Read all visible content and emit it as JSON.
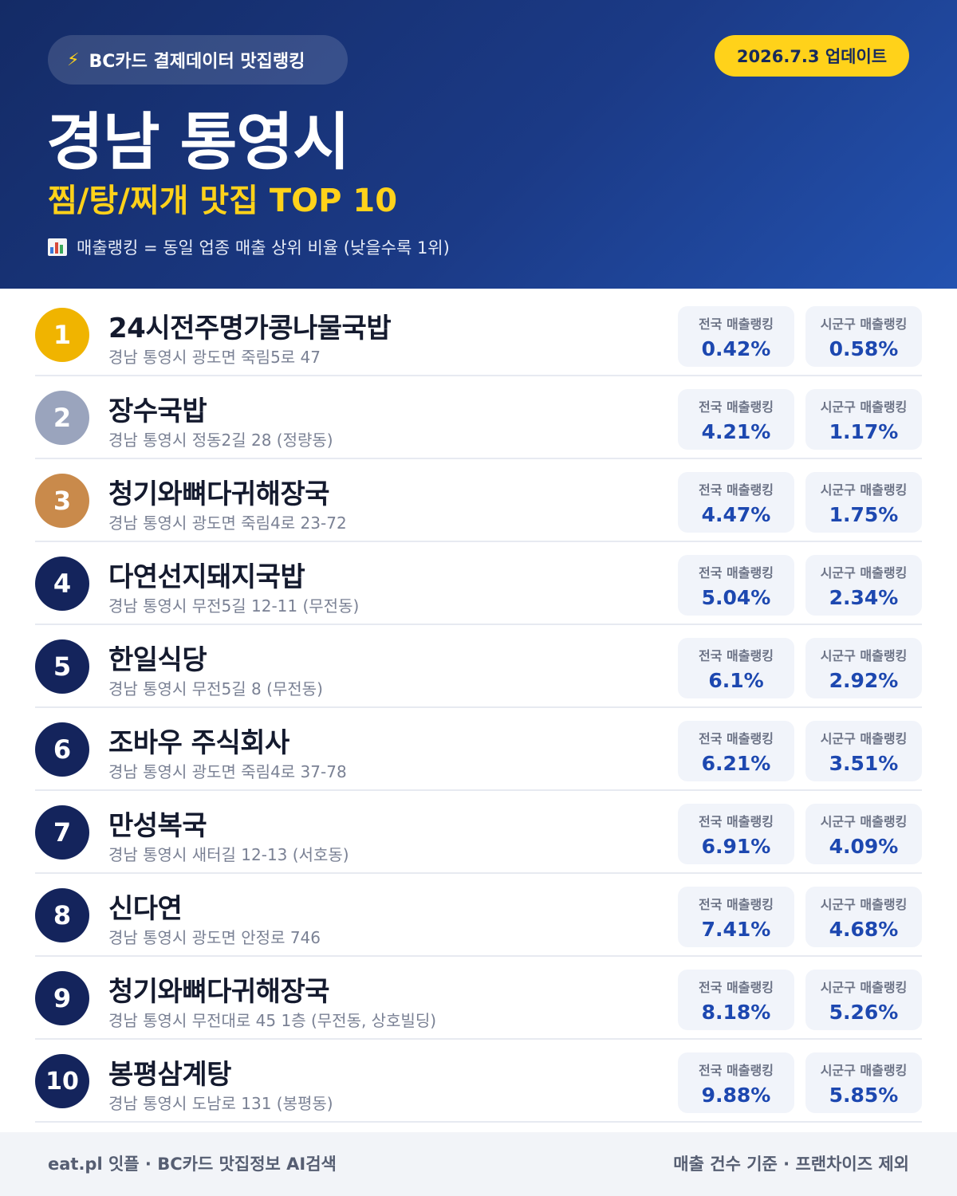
{
  "header": {
    "source_label": "BC카드 결제데이터 맛집랭킹",
    "update_label": "2026.7.3 업데이트",
    "city": "경남 통영시",
    "category": "찜/탕/찌개 맛집 TOP 10",
    "legend": "매출랭킹 = 동일 업종 매출 상위 비율 (낮을수록 1위)",
    "icons": {
      "source": "lightning-icon",
      "legend": "bar-chart-icon"
    }
  },
  "colors": {
    "gold": "#f0b400",
    "silver": "#9aa4bd",
    "bronze": "#c98a4b",
    "navy": "#14245c",
    "accent_yellow": "#ffd21a",
    "value_blue": "#1d48b0"
  },
  "stat_labels": {
    "national": "전국 매출랭킹",
    "local": "시군구 매출랭킹"
  },
  "restaurants": [
    {
      "rank": "1",
      "name": "24시전주명가콩나물국밥",
      "address": "경남 통영시 광도면 죽림5로 47",
      "national": "0.42%",
      "local": "0.58%",
      "badge_color": "#f0b400"
    },
    {
      "rank": "2",
      "name": "장수국밥",
      "address": "경남 통영시 정동2길 28 (정량동)",
      "national": "4.21%",
      "local": "1.17%",
      "badge_color": "#9aa4bd"
    },
    {
      "rank": "3",
      "name": "청기와뼈다귀해장국",
      "address": "경남 통영시 광도면 죽림4로 23-72",
      "national": "4.47%",
      "local": "1.75%",
      "badge_color": "#c98a4b"
    },
    {
      "rank": "4",
      "name": "다연선지돼지국밥",
      "address": "경남 통영시 무전5길 12-11 (무전동)",
      "national": "5.04%",
      "local": "2.34%",
      "badge_color": "#14245c"
    },
    {
      "rank": "5",
      "name": "한일식당",
      "address": "경남 통영시 무전5길 8 (무전동)",
      "national": "6.1%",
      "local": "2.92%",
      "badge_color": "#14245c"
    },
    {
      "rank": "6",
      "name": "조바우 주식회사",
      "address": "경남 통영시 광도면 죽림4로 37-78",
      "national": "6.21%",
      "local": "3.51%",
      "badge_color": "#14245c"
    },
    {
      "rank": "7",
      "name": "만성복국",
      "address": "경남 통영시 새터길 12-13 (서호동)",
      "national": "6.91%",
      "local": "4.09%",
      "badge_color": "#14245c"
    },
    {
      "rank": "8",
      "name": "신다연",
      "address": "경남 통영시 광도면 안정로 746",
      "national": "7.41%",
      "local": "4.68%",
      "badge_color": "#14245c"
    },
    {
      "rank": "9",
      "name": "청기와뼈다귀해장국",
      "address": "경남 통영시 무전대로 45 1층 (무전동, 상호빌딩)",
      "national": "8.18%",
      "local": "5.26%",
      "badge_color": "#14245c"
    },
    {
      "rank": "10",
      "name": "봉평삼계탕",
      "address": "경남 통영시 도남로 131 (봉평동)",
      "national": "9.88%",
      "local": "5.85%",
      "badge_color": "#14245c"
    }
  ],
  "footer": {
    "left": "eat.pl 잇플 · BC카드 맛집정보 AI검색",
    "right": "매출 건수 기준 · 프랜차이즈 제외"
  }
}
